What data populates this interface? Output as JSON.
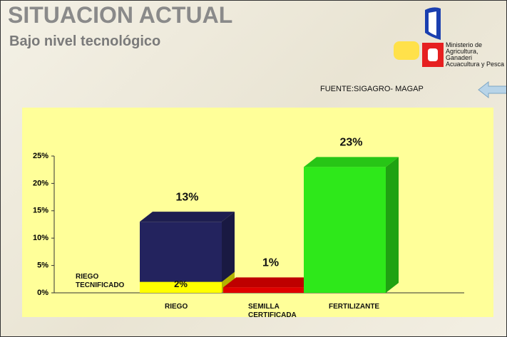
{
  "header": {
    "title": "SITUACION ACTUAL",
    "subtitle": "Bajo nivel tecnológico",
    "logo_lines": [
      "Ministerio de",
      "Agricultura, Ganaderi",
      "Acuacultura y Pesca"
    ],
    "source": "FUENTE:SIGAGRO- MAGAP"
  },
  "chart_data": {
    "type": "bar3d",
    "categories": [
      "RIEGO",
      "SEMILLA CERTIFICADA",
      "FERTILIZANTE"
    ],
    "values": [
      13,
      1,
      23
    ],
    "value_labels": [
      "13%",
      "1%",
      "23%"
    ],
    "colors": [
      "#23235e",
      "#e00000",
      "#2ee81a"
    ],
    "overlay": {
      "name": "RIEGO TECNIFICADO",
      "color": "#ffff00",
      "values": [
        2,
        null,
        null
      ],
      "value_labels": [
        "2%",
        null,
        null
      ]
    },
    "ylim": [
      0,
      25
    ],
    "yticks": [
      {
        "value": 0,
        "label": "0%"
      },
      {
        "value": 5,
        "label": "5%"
      },
      {
        "value": 10,
        "label": "10%"
      },
      {
        "value": 15,
        "label": "15%"
      },
      {
        "value": 20,
        "label": "20%"
      },
      {
        "value": 25,
        "label": "25%"
      }
    ]
  }
}
